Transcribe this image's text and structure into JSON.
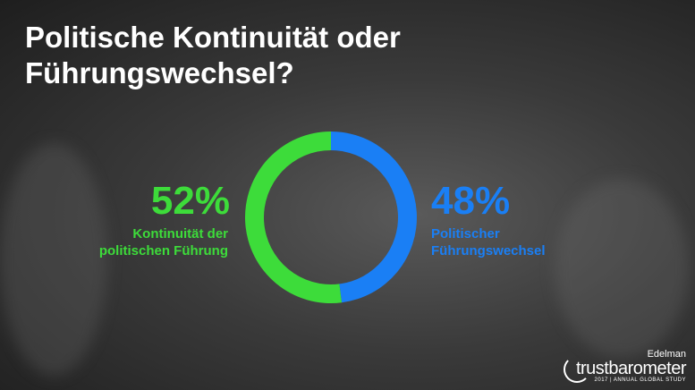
{
  "title": "Politische Kontinuität oder Führungswechsel?",
  "chart_data": {
    "type": "pie",
    "subtype": "donut",
    "slices": [
      {
        "label": "Politischer Führungswechsel",
        "value": 48,
        "value_label": "48%",
        "color": "#1a7ff5"
      },
      {
        "label": "Kontinuität der politischen Führung",
        "value": 52,
        "value_label": "52%",
        "color": "#3ddc3a"
      }
    ]
  },
  "left": {
    "pct": "52%",
    "line1": "Kontinuität der",
    "line2": "politischen Führung"
  },
  "right": {
    "pct": "48%",
    "line1": "Politischer",
    "line2": "Führungswechsel"
  },
  "logo": {
    "brand": "Edelman",
    "name": "trustbarometer",
    "sub": "2017 | ANNUAL GLOBAL STUDY"
  }
}
